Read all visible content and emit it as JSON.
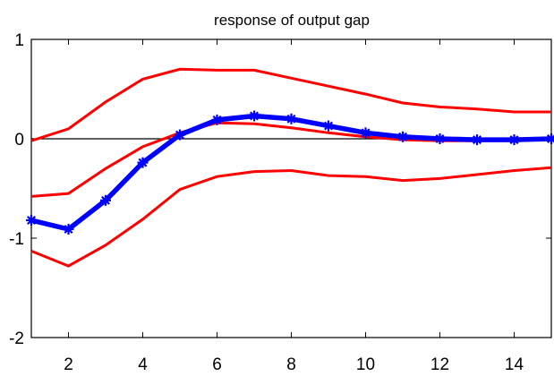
{
  "chart_data": {
    "type": "line",
    "title": "response of output gap",
    "xlabel": "",
    "ylabel": "",
    "xlim": [
      1,
      15
    ],
    "ylim": [
      -2,
      1
    ],
    "x": [
      1,
      2,
      3,
      4,
      5,
      6,
      7,
      8,
      9,
      10,
      11,
      12,
      13,
      14,
      15
    ],
    "x_ticks": [
      2,
      4,
      6,
      8,
      10,
      12,
      14
    ],
    "y_ticks": [
      -2,
      -1,
      0,
      1
    ],
    "zero_line": true,
    "grid": false,
    "series": [
      {
        "role": "upper-bound",
        "color": "#ff0000",
        "marker": "none",
        "values": [
          -0.02,
          0.1,
          0.37,
          0.6,
          0.7,
          0.69,
          0.69,
          0.61,
          0.53,
          0.45,
          0.36,
          0.32,
          0.3,
          0.27,
          0.27
        ]
      },
      {
        "role": "lower-bound",
        "color": "#ff0000",
        "marker": "none",
        "values": [
          -1.13,
          -1.28,
          -1.07,
          -0.81,
          -0.51,
          -0.38,
          -0.33,
          -0.32,
          -0.37,
          -0.38,
          -0.42,
          -0.4,
          -0.36,
          -0.32,
          -0.29
        ]
      },
      {
        "role": "inner-line",
        "color": "#ff0000",
        "marker": "none",
        "values": [
          -0.58,
          -0.55,
          -0.3,
          -0.08,
          0.06,
          0.16,
          0.15,
          0.11,
          0.06,
          0.02,
          -0.01,
          -0.02,
          -0.02,
          -0.01,
          0.0
        ]
      },
      {
        "role": "point-estimate",
        "color": "#0000ff",
        "marker": "asterisk",
        "values": [
          -0.82,
          -0.91,
          -0.62,
          -0.24,
          0.04,
          0.19,
          0.23,
          0.2,
          0.13,
          0.06,
          0.02,
          0.0,
          -0.01,
          -0.01,
          0.0
        ]
      }
    ]
  }
}
